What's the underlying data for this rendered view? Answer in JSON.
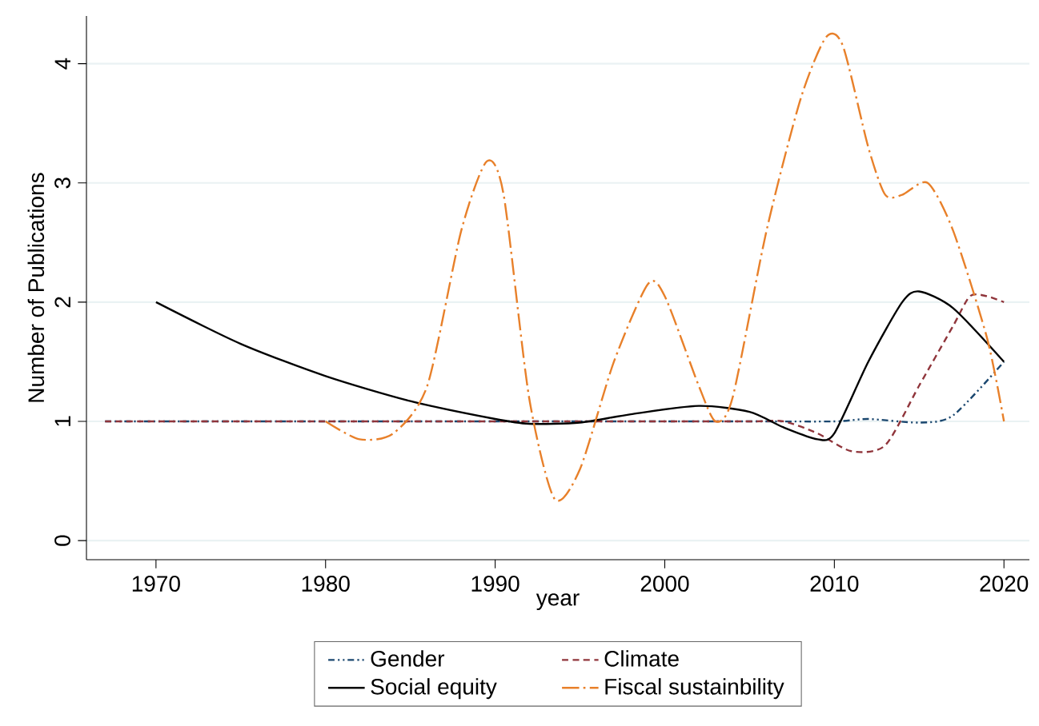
{
  "chart_data": {
    "type": "line",
    "xlabel": "year",
    "ylabel": "Number of Publications",
    "xlim": [
      1965.9,
      2021.5
    ],
    "ylim": [
      -0.16,
      4.4
    ],
    "xticks": [
      1970,
      1980,
      1990,
      2000,
      2010,
      2020
    ],
    "yticks": [
      0,
      1,
      2,
      3,
      4
    ],
    "grid": "y",
    "legend": "bottom",
    "marker": "none",
    "series": [
      {
        "name": "Gender",
        "color": "#1a476f",
        "line_style": "dotted",
        "x": [
          1967,
          1975,
          1985,
          1995,
          2005,
          2010,
          2012,
          2015,
          2017,
          2020
        ],
        "values": [
          1,
          1,
          1,
          1,
          1,
          1,
          1.02,
          0.99,
          1.05,
          1.5
        ]
      },
      {
        "name": "Climate",
        "color": "#90353b",
        "line_style": "dashed",
        "x": [
          1967,
          1975,
          1985,
          1995,
          2005,
          2007,
          2009,
          2011,
          2013,
          2015,
          2017,
          2018,
          2019,
          2020
        ],
        "values": [
          1,
          1,
          1,
          1,
          1,
          1,
          0.9,
          0.75,
          0.8,
          1.3,
          1.8,
          2.05,
          2.05,
          2.0
        ]
      },
      {
        "name": "Social equity",
        "color": "#000000",
        "line_style": "solid",
        "x": [
          1970,
          1975,
          1980,
          1985,
          1990,
          1992,
          1995,
          1998,
          2002,
          2005,
          2007,
          2009,
          2010,
          2012,
          2014,
          2015,
          2017,
          2020
        ],
        "values": [
          2.0,
          1.65,
          1.38,
          1.17,
          1.02,
          0.98,
          0.99,
          1.06,
          1.13,
          1.08,
          0.95,
          0.85,
          0.9,
          1.5,
          2.0,
          2.09,
          1.95,
          1.5
        ]
      },
      {
        "name": "Fiscal sustainbility",
        "color": "#e8802a",
        "line_style": "dashdot",
        "x": [
          1980,
          1982,
          1984,
          1986,
          1988,
          1989.5,
          1990.5,
          1992,
          1993.5,
          1995,
          1997,
          1999,
          2000,
          2002,
          2003,
          2004,
          2006,
          2008,
          2009.5,
          2010.5,
          2012,
          2013,
          2014,
          2015.5,
          2017,
          2019,
          2020
        ],
        "values": [
          1.0,
          0.85,
          0.9,
          1.3,
          2.6,
          3.18,
          2.9,
          1.2,
          0.35,
          0.6,
          1.5,
          2.15,
          2.05,
          1.3,
          1.0,
          1.2,
          2.6,
          3.7,
          4.22,
          4.15,
          3.3,
          2.9,
          2.9,
          3.0,
          2.6,
          1.7,
          1.0
        ]
      }
    ]
  }
}
